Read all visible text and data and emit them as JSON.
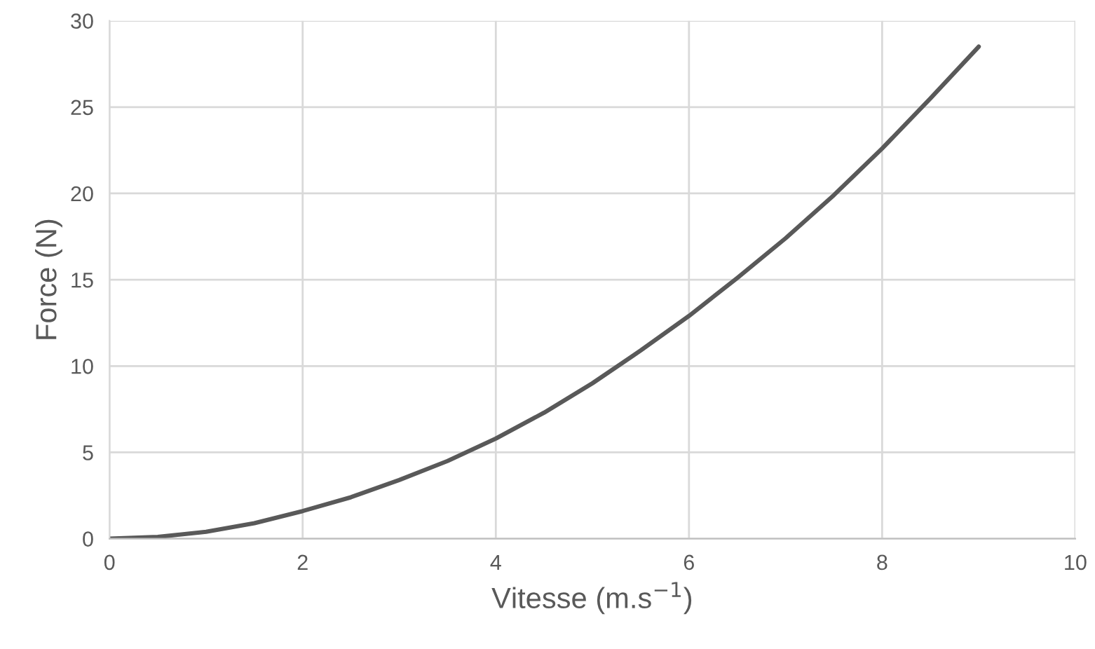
{
  "chart_data": {
    "type": "line",
    "xlabel": "Vitesse (m.s$^{−1}$)",
    "ylabel": "Force (N)",
    "series": [
      {
        "color": "#595959",
        "x": [
          0,
          0.5,
          1,
          1.5,
          2,
          2.5,
          3,
          3.5,
          4,
          4.5,
          5,
          5.5,
          6,
          6.5,
          7,
          7.5,
          8,
          8.5,
          9
        ],
        "values": [
          0,
          0.1,
          0.4,
          0.9,
          1.6,
          2.4,
          3.4,
          4.5,
          5.8,
          7.3,
          9.0,
          10.9,
          12.9,
          15.1,
          17.4,
          19.9,
          22.6,
          25.5,
          28.5
        ]
      }
    ],
    "xlim": [
      0,
      10
    ],
    "xticks": [
      0,
      2,
      4,
      6,
      8,
      10
    ],
    "ylim": [
      0,
      30
    ],
    "yticks": [
      0,
      5,
      10,
      15,
      20,
      25,
      30
    ],
    "grid": true,
    "marker": "none",
    "line_style": "solid",
    "legend": false
  }
}
